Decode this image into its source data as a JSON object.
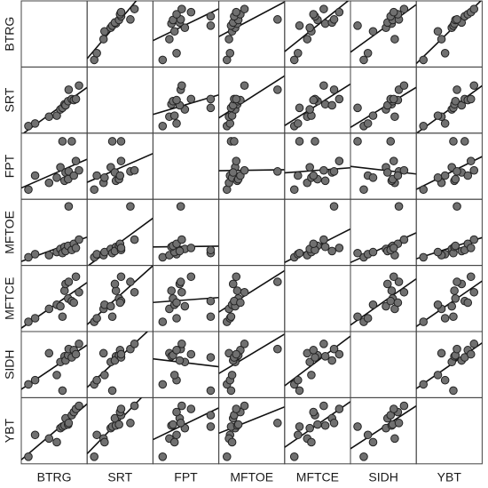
{
  "chart_data": {
    "type": "scatter",
    "variables": [
      "BTRG",
      "SRT",
      "FPT",
      "MFTOE",
      "MFTCE",
      "SIDH",
      "YBT"
    ],
    "diagonal": "empty",
    "grid": false,
    "fit_line": "linear",
    "axis_range": [
      0,
      1
    ],
    "colors": {
      "marker_fill": "#707070",
      "marker_stroke": "#222222",
      "line": "#111111",
      "frame": "#444444",
      "text": "#1a1a1a"
    },
    "values": {
      "BTRG": [
        0.0,
        0.13,
        0.4,
        0.55,
        0.62,
        0.66,
        0.7,
        0.72,
        0.77,
        0.78,
        0.84,
        0.88,
        0.92,
        0.98
      ],
      "SRT": [
        0.0,
        0.05,
        0.18,
        0.2,
        0.32,
        0.35,
        0.42,
        0.4,
        0.48,
        0.7,
        0.52,
        0.5,
        0.52,
        0.78
      ],
      "FPT": [
        0.05,
        0.32,
        0.18,
        0.28,
        0.48,
        0.98,
        0.22,
        0.38,
        0.25,
        0.4,
        0.98,
        0.32,
        0.6,
        0.42
      ],
      "MFTOE": [
        0.02,
        0.08,
        0.06,
        0.12,
        0.18,
        0.1,
        0.22,
        0.14,
        0.24,
        1.0,
        0.16,
        0.28,
        0.2,
        0.36
      ],
      "MFTCE": [
        0.05,
        0.12,
        0.3,
        0.38,
        0.35,
        0.15,
        0.65,
        0.78,
        0.5,
        0.82,
        0.45,
        0.42,
        0.92,
        0.62
      ],
      "SIDH": [
        0.12,
        0.2,
        0.72,
        0.3,
        0.55,
        0.0,
        0.66,
        0.58,
        0.68,
        0.8,
        0.64,
        0.78,
        0.7,
        0.9
      ],
      "YBT": [
        0.0,
        0.42,
        0.35,
        0.28,
        0.55,
        0.58,
        0.6,
        0.74,
        0.62,
        0.65,
        0.8,
        0.86,
        0.92,
        0.98
      ]
    }
  }
}
